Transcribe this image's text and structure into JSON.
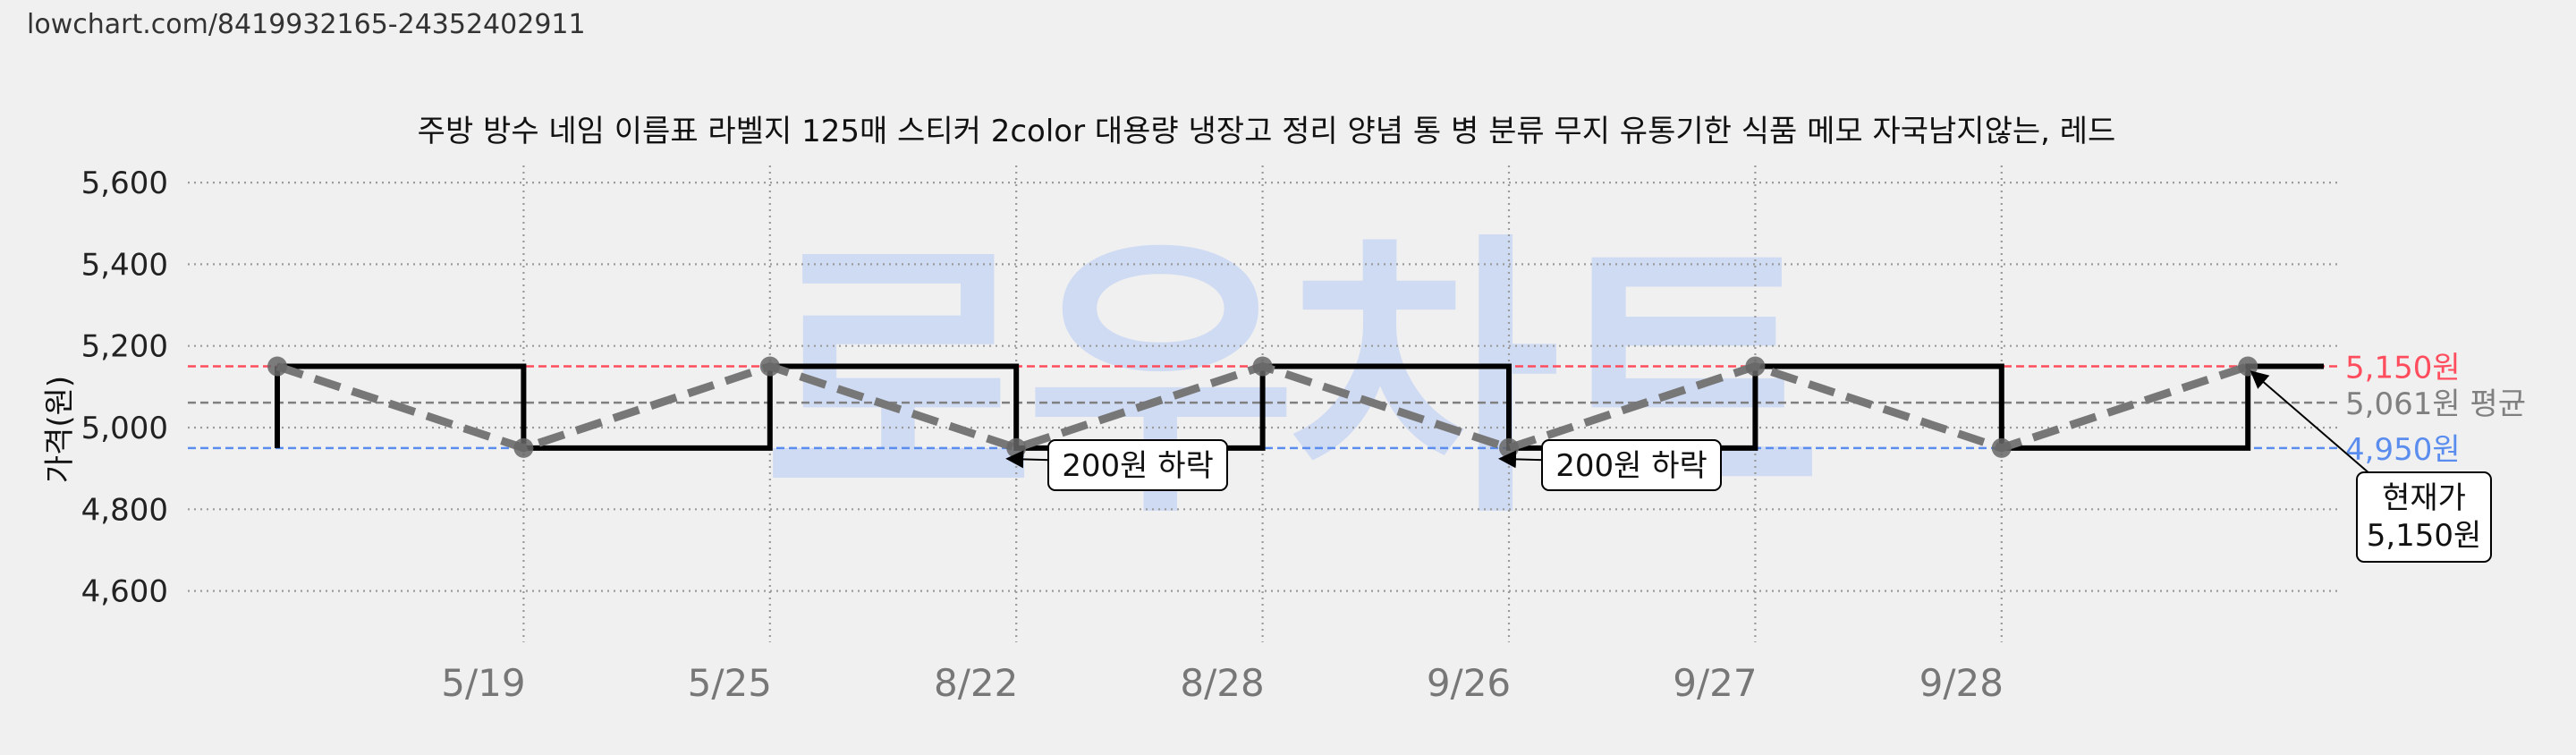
{
  "url": "lowchart.com/8419932165-24352402911",
  "watermark": "로우차트",
  "chart_data": {
    "type": "line",
    "title": "주방 방수 네임 이름표 라벨지 125매 스티커 2color 대용량 냉장고 정리 양념 통 병 분류 무지 유통기한 식품 메모 자국남지않는, 레드",
    "ylabel": "가격(원)",
    "xlabel": "",
    "ylim": [
      4500,
      5700
    ],
    "yticks": [
      4600,
      4800,
      5000,
      5200,
      5400,
      5600
    ],
    "ytick_labels": [
      "4,600",
      "4,800",
      "5,000",
      "5,200",
      "5,400",
      "5,600"
    ],
    "xtick_labels": [
      "5/19",
      "5/25",
      "8/22",
      "8/28",
      "9/26",
      "9/27",
      "9/28"
    ],
    "grid": true,
    "series": [
      {
        "style": "step",
        "color": "#000000",
        "values": [
          5150,
          4950,
          5150,
          4950,
          5150,
          4950,
          5150,
          4950,
          5150
        ]
      },
      {
        "style": "dashed-with-markers",
        "color": "#777777",
        "values": [
          5150,
          4950,
          5150,
          4950,
          5150,
          4950,
          5150,
          4950,
          5150
        ]
      }
    ],
    "reference_lines": [
      {
        "value": 5150,
        "label": "5,150원",
        "color": "#ff4d5e"
      },
      {
        "value": 5061,
        "label": "5,061원 평균",
        "color": "#808080"
      },
      {
        "value": 4950,
        "label": "4,950원",
        "color": "#5b8def"
      }
    ],
    "annotations": [
      {
        "text": "200원 하락",
        "point_index": 3
      },
      {
        "text": "200원 하락",
        "point_index": 5
      },
      {
        "text": "현재가\n5,150원",
        "point_index": 8
      }
    ]
  }
}
